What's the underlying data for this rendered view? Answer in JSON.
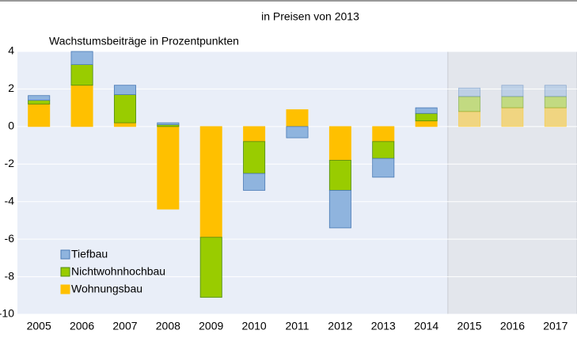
{
  "chart_data": {
    "type": "stacked-bar",
    "title": "in Preisen von 2013",
    "subtitle": "Wachstumsbeiträge in Prozentpunkten",
    "categories": [
      "2005",
      "2006",
      "2007",
      "2008",
      "2009",
      "2010",
      "2011",
      "2012",
      "2013",
      "2014",
      "2015",
      "2016",
      "2017"
    ],
    "series": [
      {
        "name": "Tiefbau",
        "color": "#8fb4de",
        "values": [
          0.25,
          0.7,
          0.5,
          0.1,
          0,
          -0.9,
          -0.6,
          -2.0,
          -1.0,
          0.3,
          0.45,
          0.6,
          0.6
        ]
      },
      {
        "name": "Nichtwohnhochbau",
        "color": "#99cc00",
        "values": [
          0.2,
          1.1,
          1.5,
          0.1,
          -3.2,
          -1.7,
          0,
          -1.6,
          -0.9,
          0.4,
          0.8,
          0.6,
          0.6
        ]
      },
      {
        "name": "Wohnungsbau",
        "color": "#ffc000",
        "values": [
          1.2,
          2.2,
          0.2,
          -4.4,
          -5.9,
          -0.8,
          0.9,
          -1.8,
          -0.8,
          0.3,
          0.8,
          1.0,
          1.0
        ]
      }
    ],
    "ylim": [
      -10,
      4
    ],
    "yticks": [
      -10,
      -8,
      -6,
      -4,
      -2,
      0,
      2,
      4
    ],
    "grid": true,
    "legend": "lower-left",
    "shaded_from": "2015"
  }
}
